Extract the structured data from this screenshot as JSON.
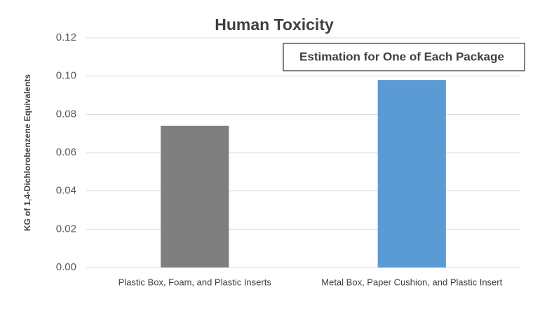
{
  "chart_data": {
    "type": "bar",
    "title": "Human Toxicity",
    "annotation": "Estimation for One of Each Package",
    "y_label": "KG of 1,4-Dichlorobenzene  Equivalents",
    "categories": [
      "Plastic Box, Foam, and Plastic Inserts",
      "Metal Box, Paper Cushion, and Plastic Insert"
    ],
    "values": [
      0.074,
      0.098
    ],
    "colors": [
      "#7f7f7f",
      "#5b9bd5"
    ],
    "ylim": [
      0,
      0.12
    ],
    "yticks": [
      {
        "value": 0,
        "label": "0.00"
      },
      {
        "value": 0.02,
        "label": "0.02"
      },
      {
        "value": 0.04,
        "label": "0.04"
      },
      {
        "value": 0.06,
        "label": "0.06"
      },
      {
        "value": 0.08,
        "label": "0.08"
      },
      {
        "value": 0.1,
        "label": "0.10"
      },
      {
        "value": 0.12,
        "label": "0.12"
      }
    ],
    "grid": true
  }
}
